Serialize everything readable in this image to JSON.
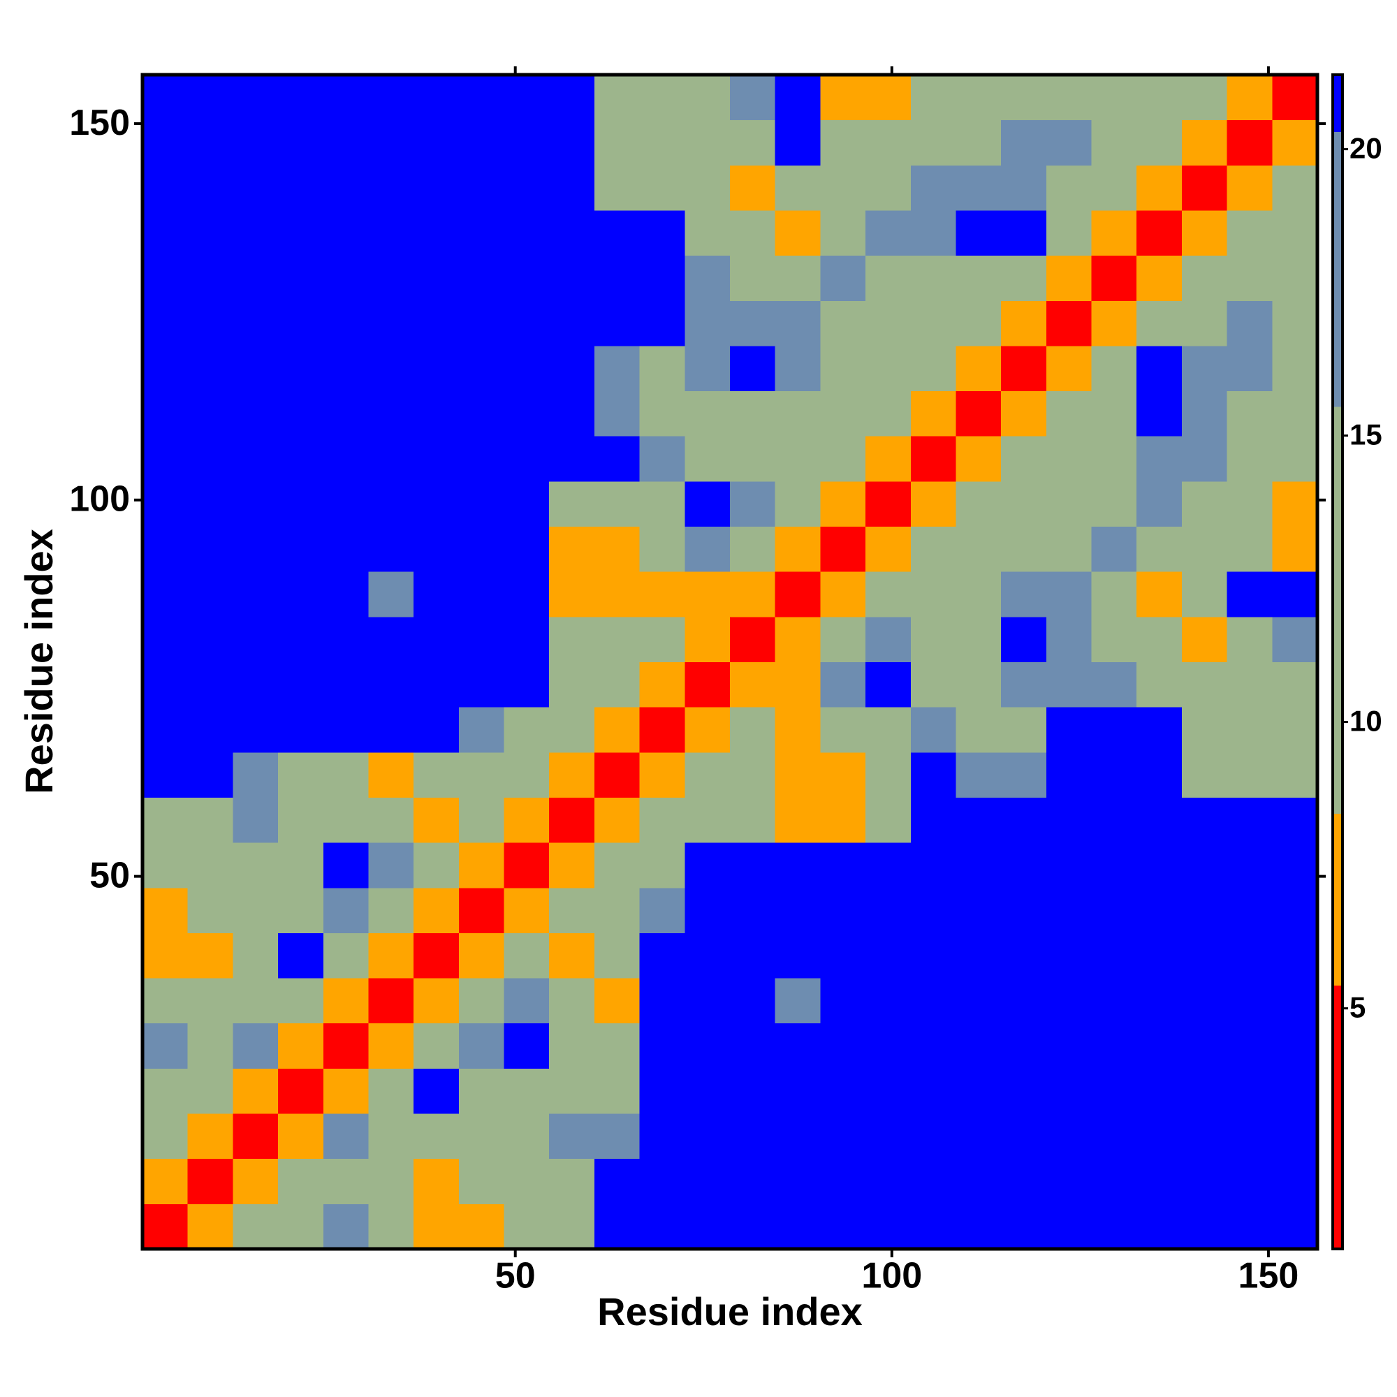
{
  "chart_data": {
    "type": "heatmap",
    "x_label": "Residue index",
    "y_label": "Residue index",
    "xlim": [
      0.5,
      156.5
    ],
    "ylim": [
      0.5,
      156.5
    ],
    "xticks": [
      50,
      100,
      150
    ],
    "yticks": [
      50,
      100,
      150
    ],
    "x": [
      3.5,
      9.5,
      15.5,
      21.5,
      27.5,
      33.5,
      39.5,
      45.5,
      51.5,
      57.5,
      63.5,
      69.5,
      75.5,
      81.5,
      87.5,
      93.5,
      99.5,
      105.5,
      111.5,
      117.5,
      123.5,
      129.5,
      135.5,
      141.5,
      147.5,
      153.5
    ],
    "y": [
      3.5,
      9.5,
      15.5,
      21.5,
      27.5,
      33.5,
      39.5,
      45.5,
      51.5,
      57.5,
      63.5,
      69.5,
      75.5,
      81.5,
      87.5,
      93.5,
      99.5,
      105.5,
      111.5,
      117.5,
      123.5,
      129.5,
      135.5,
      141.5,
      147.5,
      153.5
    ],
    "cell_size": 6,
    "z": [
      [
        4,
        8,
        10,
        12,
        16,
        12,
        7,
        7,
        12,
        14,
        21,
        21,
        21,
        21,
        21,
        21,
        21,
        21,
        21,
        21,
        21,
        21,
        21,
        21,
        21,
        21
      ],
      [
        8,
        4,
        8,
        10,
        12,
        9,
        7,
        12,
        12,
        13,
        21,
        21,
        21,
        21,
        21,
        21,
        21,
        21,
        21,
        21,
        21,
        21,
        21,
        21,
        21,
        21
      ],
      [
        10,
        8,
        4,
        8,
        16,
        12,
        12,
        12,
        13,
        16,
        16,
        21,
        21,
        21,
        21,
        21,
        21,
        21,
        21,
        21,
        21,
        21,
        21,
        21,
        21,
        21
      ],
      [
        12,
        10,
        8,
        4,
        8,
        10,
        21,
        12,
        12,
        13,
        12,
        21,
        21,
        21,
        21,
        21,
        21,
        21,
        21,
        21,
        21,
        21,
        21,
        21,
        21,
        21
      ],
      [
        16,
        12,
        16,
        8,
        4,
        8,
        10,
        16,
        21,
        12,
        12,
        21,
        21,
        21,
        21,
        21,
        21,
        21,
        21,
        21,
        21,
        21,
        21,
        21,
        21,
        21
      ],
      [
        12,
        9,
        12,
        10,
        8,
        4,
        8,
        10,
        16,
        12,
        7,
        21,
        21,
        21,
        16,
        21,
        21,
        21,
        21,
        21,
        21,
        21,
        21,
        21,
        21,
        21
      ],
      [
        7,
        7,
        12,
        21,
        10,
        8,
        4,
        8,
        10,
        7,
        10,
        21,
        21,
        21,
        21,
        21,
        21,
        21,
        21,
        21,
        21,
        21,
        21,
        21,
        21,
        21
      ],
      [
        7,
        12,
        12,
        12,
        16,
        10,
        8,
        4,
        8,
        9,
        12,
        16,
        21,
        21,
        21,
        21,
        21,
        21,
        21,
        21,
        21,
        21,
        21,
        21,
        21,
        21
      ],
      [
        12,
        12,
        13,
        12,
        21,
        16,
        10,
        8,
        4,
        8,
        10,
        14,
        21,
        21,
        21,
        21,
        21,
        21,
        21,
        21,
        21,
        21,
        21,
        21,
        21,
        21
      ],
      [
        14,
        13,
        16,
        13,
        12,
        12,
        7,
        9,
        8,
        4,
        8,
        10,
        10,
        12,
        8,
        8,
        13,
        21,
        21,
        21,
        21,
        21,
        21,
        21,
        21,
        21
      ],
      [
        21,
        21,
        16,
        12,
        12,
        7,
        10,
        12,
        10,
        8,
        4,
        8,
        9,
        10,
        7,
        8,
        13,
        21,
        16,
        16,
        21,
        21,
        21,
        14,
        14,
        14
      ],
      [
        21,
        21,
        21,
        21,
        21,
        21,
        21,
        16,
        14,
        10,
        8,
        4,
        8,
        9,
        7,
        9,
        13,
        16,
        14,
        14,
        21,
        21,
        21,
        13,
        13,
        13
      ],
      [
        21,
        21,
        21,
        21,
        21,
        21,
        21,
        21,
        21,
        10,
        9,
        8,
        4,
        8,
        8,
        16,
        21,
        13,
        13,
        16,
        16,
        16,
        13,
        13,
        13,
        12
      ],
      [
        21,
        21,
        21,
        21,
        21,
        21,
        21,
        21,
        21,
        12,
        10,
        9,
        8,
        4,
        8,
        9,
        16,
        13,
        13,
        21,
        16,
        13,
        10,
        7,
        12,
        16
      ],
      [
        21,
        21,
        21,
        21,
        21,
        16,
        21,
        21,
        21,
        8,
        7,
        7,
        8,
        8,
        4,
        8,
        10,
        12,
        13,
        16,
        16,
        13,
        7,
        10,
        21,
        21
      ],
      [
        21,
        21,
        21,
        21,
        21,
        21,
        21,
        21,
        21,
        8,
        8,
        9,
        16,
        9,
        8,
        4,
        8,
        10,
        12,
        13,
        13,
        16,
        13,
        13,
        12,
        7
      ],
      [
        21,
        21,
        21,
        21,
        21,
        21,
        21,
        21,
        21,
        13,
        13,
        13,
        21,
        16,
        10,
        8,
        4,
        8,
        10,
        12,
        13,
        13,
        16,
        12,
        10,
        8
      ],
      [
        21,
        21,
        21,
        21,
        21,
        21,
        21,
        21,
        21,
        21,
        21,
        16,
        13,
        13,
        12,
        10,
        8,
        4,
        8,
        10,
        12,
        13,
        16,
        16,
        13,
        12
      ],
      [
        21,
        21,
        21,
        21,
        21,
        21,
        21,
        21,
        21,
        21,
        16,
        14,
        13,
        13,
        13,
        12,
        10,
        8,
        4,
        8,
        10,
        12,
        21,
        16,
        13,
        13
      ],
      [
        21,
        21,
        21,
        21,
        21,
        21,
        21,
        21,
        21,
        21,
        16,
        14,
        16,
        21,
        16,
        13,
        12,
        10,
        8,
        4,
        8,
        9,
        21,
        16,
        16,
        13
      ],
      [
        21,
        21,
        21,
        21,
        21,
        21,
        21,
        21,
        21,
        21,
        21,
        21,
        16,
        16,
        16,
        13,
        13,
        12,
        10,
        8,
        4,
        8,
        10,
        13,
        16,
        13
      ],
      [
        21,
        21,
        21,
        21,
        21,
        21,
        21,
        21,
        21,
        21,
        21,
        21,
        16,
        13,
        13,
        16,
        13,
        13,
        12,
        9,
        8,
        4,
        8,
        9,
        12,
        13
      ],
      [
        21,
        21,
        21,
        21,
        21,
        21,
        21,
        21,
        21,
        21,
        21,
        21,
        13,
        10,
        7,
        13,
        16,
        16,
        21,
        21,
        10,
        8,
        4,
        8,
        9,
        12
      ],
      [
        21,
        21,
        21,
        21,
        21,
        21,
        21,
        21,
        21,
        21,
        14,
        13,
        13,
        7,
        10,
        13,
        12,
        16,
        16,
        16,
        13,
        9,
        8,
        4,
        8,
        10
      ],
      [
        21,
        21,
        21,
        21,
        21,
        21,
        21,
        21,
        21,
        21,
        14,
        13,
        13,
        12,
        21,
        12,
        10,
        13,
        13,
        16,
        16,
        12,
        9,
        8,
        4,
        8
      ],
      [
        21,
        21,
        21,
        21,
        21,
        21,
        21,
        21,
        21,
        21,
        14,
        13,
        12,
        16,
        21,
        7,
        8,
        12,
        13,
        13,
        13,
        13,
        12,
        10,
        8,
        4
      ]
    ],
    "color_bounds": [
      0.8,
      5.4,
      8.4,
      15.5,
      20.3,
      21.3
    ],
    "colors": [
      "#ff0000",
      "#ffa500",
      "#9db58c",
      "#6e8db0",
      "#0000ff"
    ],
    "colorbar_lim": [
      0.8,
      21.3
    ],
    "colorbar_ticks": [
      5,
      10,
      15,
      20
    ]
  }
}
